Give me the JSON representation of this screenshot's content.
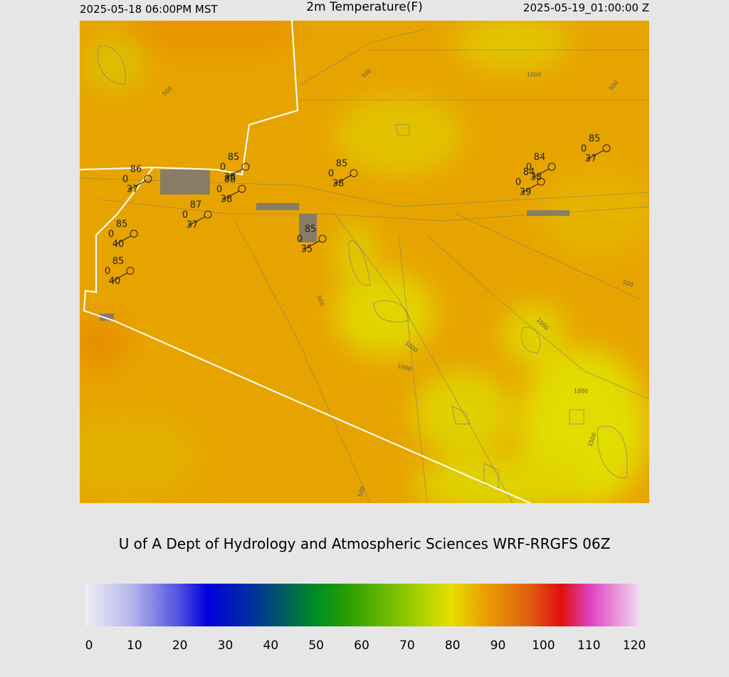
{
  "header": {
    "left": "2025-05-18 06:00PM MST",
    "title": "2m Temperature(F)",
    "right": "2025-05-19_01:00:00 Z"
  },
  "stations": [
    {
      "temp": 86,
      "wind": 0,
      "dew": 37
    },
    {
      "temp": 85,
      "wind": 0,
      "dew": 38
    },
    {
      "temp": 88,
      "wind": 0,
      "dew": 38
    },
    {
      "temp": 87,
      "wind": 0,
      "dew": 37
    },
    {
      "temp": 85,
      "wind": 0,
      "dew": 40
    },
    {
      "temp": 85,
      "wind": 0,
      "dew": 40
    },
    {
      "temp": 85,
      "wind": 0,
      "dew": 38
    },
    {
      "temp": 85,
      "wind": 0,
      "dew": 35
    },
    {
      "temp": 84,
      "wind": 0,
      "dew": 38
    },
    {
      "temp": 84,
      "wind": 0,
      "dew": 39
    },
    {
      "temp": 85,
      "wind": 0,
      "dew": 37
    }
  ],
  "contour_labels": [
    "500",
    "500",
    "1000",
    "500",
    "500",
    "500",
    "1000",
    "1000",
    "1000",
    "1000",
    "1500",
    "500"
  ],
  "credit": "U of A Dept of Hydrology and Atmospheric Sciences WRF-RRGFS 06Z",
  "colorbar": {
    "range": [
      0,
      120
    ],
    "ticks": [
      0,
      10,
      20,
      30,
      40,
      50,
      60,
      70,
      80,
      90,
      100,
      110,
      120
    ]
  }
}
